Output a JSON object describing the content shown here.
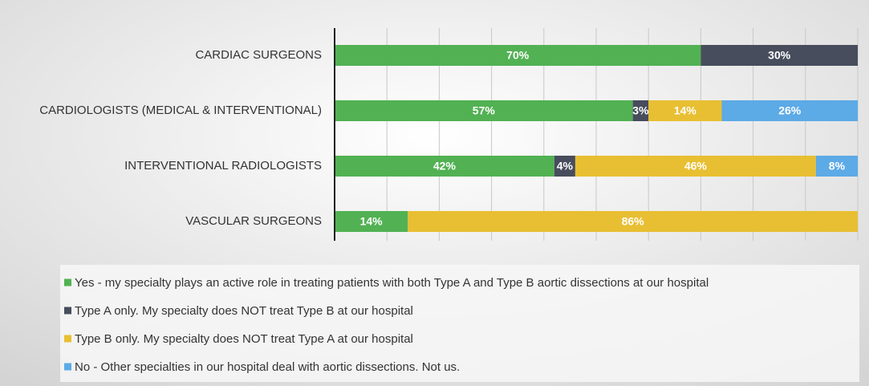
{
  "chart_data": {
    "type": "stacked-bar-horizontal",
    "categories": [
      "CARDIAC SURGEONS",
      "CARDIOLOGISTS (MEDICAL & INTERVENTIONAL)",
      "INTERVENTIONAL RADIOLOGISTS",
      "VASCULAR SURGEONS"
    ],
    "series": [
      {
        "name": "Yes - my specialty plays an active role in treating patients with both Type A and Type B aortic dissections at our hospital",
        "color": "#52b153",
        "values": [
          70,
          57,
          42,
          14
        ],
        "value_labels": [
          "70%",
          "57%",
          "42%",
          "14%"
        ]
      },
      {
        "name": "Type A only.  My specialty does NOT treat Type B at our hospital",
        "color": "#474d5d",
        "values": [
          30,
          3,
          4,
          null
        ],
        "value_labels": [
          "30%",
          "3%",
          "4%",
          null
        ]
      },
      {
        "name": "Type B only. My specialty does NOT treat Type A at our hospital",
        "color": "#e8bf32",
        "values": [
          null,
          14,
          46,
          86
        ],
        "value_labels": [
          null,
          "14%",
          "46%",
          "86%"
        ]
      },
      {
        "name": "No - Other specialties in our hospital deal with aortic dissections. Not us.",
        "color": "#5caae6",
        "values": [
          null,
          26,
          8,
          null
        ],
        "value_labels": [
          null,
          "26%",
          "8%",
          null
        ]
      }
    ],
    "xlim": [
      0,
      100
    ],
    "xticks": [
      0,
      10,
      20,
      30,
      40,
      50,
      60,
      70,
      80,
      90,
      100
    ],
    "grid": true,
    "legend": "bottom"
  }
}
